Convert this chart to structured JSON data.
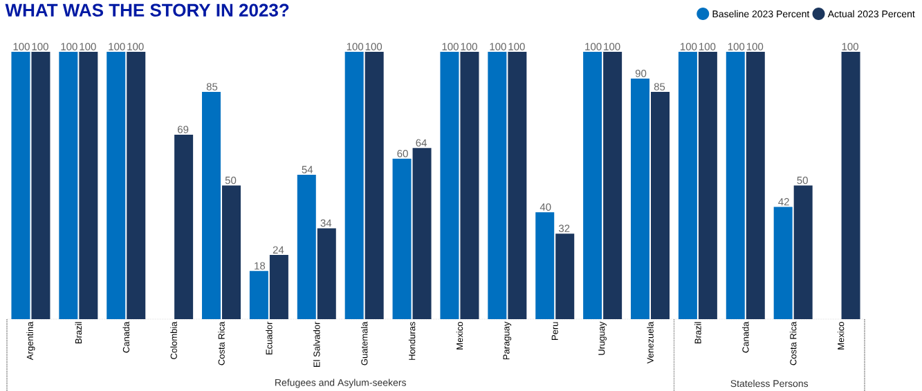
{
  "chart_data": {
    "type": "bar",
    "title": "WHAT WAS THE STORY IN 2023?",
    "categories": [
      "Argentina",
      "Brazil",
      "Canada",
      "Colombia",
      "Costa Rica",
      "Ecuador",
      "El Salvador",
      "Guatemala",
      "Honduras",
      "Mexico",
      "Paraguay",
      "Peru",
      "Uruguay",
      "Venezuela",
      "Brazil",
      "Canada",
      "Costa Rica",
      "Mexico"
    ],
    "series": [
      {
        "name": "Baseline 2023 Percent",
        "color": "#0070c0",
        "values": [
          100,
          100,
          100,
          null,
          85,
          18,
          54,
          100,
          60,
          100,
          100,
          40,
          100,
          90,
          100,
          100,
          42,
          null
        ]
      },
      {
        "name": "Actual 2023 Percent",
        "color": "#1b365d",
        "values": [
          100,
          100,
          100,
          69,
          50,
          24,
          34,
          100,
          64,
          100,
          100,
          32,
          100,
          85,
          100,
          100,
          50,
          100
        ]
      }
    ],
    "ylim": [
      0,
      100
    ],
    "tick_labels": "x",
    "legend": "top right",
    "data_labels": true,
    "annotations": [
      "Refugees and Asylum-seekers",
      "Stateless Persons"
    ]
  }
}
